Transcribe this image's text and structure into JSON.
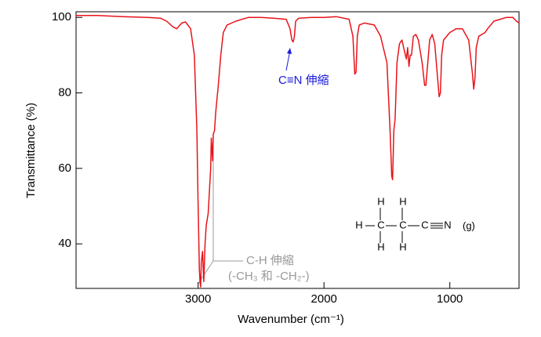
{
  "chart_data": {
    "type": "line",
    "x_label": "Wavenumber (cm⁻¹)",
    "y_label": "Transmittance (%)",
    "xlim": [
      3970,
      450
    ],
    "ylim": [
      28.2,
      101.5
    ],
    "xticks": [
      3000,
      2000,
      1000
    ],
    "yticks": [
      40,
      60,
      80,
      100
    ],
    "x": [
      3970,
      3800,
      3600,
      3400,
      3300,
      3250,
      3200,
      3170,
      3130,
      3100,
      3060,
      3030,
      3010,
      3000,
      2990,
      2985,
      2980,
      2975,
      2965,
      2955,
      2945,
      2935,
      2920,
      2900,
      2895,
      2885,
      2880,
      2870,
      2860,
      2840,
      2820,
      2800,
      2770,
      2700,
      2600,
      2500,
      2400,
      2300,
      2270,
      2255,
      2245,
      2235,
      2225,
      2200,
      2100,
      2000,
      1900,
      1800,
      1770,
      1755,
      1745,
      1735,
      1720,
      1680,
      1600,
      1550,
      1500,
      1475,
      1462,
      1455,
      1445,
      1435,
      1420,
      1400,
      1380,
      1360,
      1345,
      1335,
      1325,
      1315,
      1305,
      1290,
      1270,
      1250,
      1220,
      1200,
      1190,
      1180,
      1160,
      1140,
      1120,
      1100,
      1085,
      1075,
      1065,
      1050,
      1000,
      950,
      900,
      850,
      820,
      810,
      800,
      790,
      770,
      720,
      700,
      650,
      600,
      550,
      500,
      470,
      450
    ],
    "series": [
      {
        "name": "CH3CH2CN (g)",
        "color": "#e8141b",
        "values": [
          100.5,
          100.5,
          100.2,
          100,
          99.8,
          99,
          97.5,
          97,
          98.5,
          98.8,
          97,
          90,
          70,
          50,
          33,
          30,
          28.6,
          35,
          38,
          30,
          40,
          45,
          48,
          60,
          68,
          62,
          69,
          70,
          75,
          82,
          90,
          96,
          98,
          99,
          100,
          100,
          99.8,
          99.5,
          97,
          94,
          93.5,
          95,
          99,
          99.8,
          100,
          100,
          100.2,
          99.5,
          95,
          85,
          85.5,
          95,
          98,
          98.5,
          98,
          95,
          88,
          70,
          58,
          57,
          70,
          73,
          88,
          93,
          94,
          91,
          89,
          92,
          87,
          90,
          90,
          95,
          95.5,
          94,
          88,
          82,
          82,
          86,
          94,
          95.5,
          93,
          85,
          79,
          80,
          90,
          94,
          96,
          97,
          97,
          94,
          85,
          81,
          84,
          92,
          95,
          96,
          97,
          99,
          99.5,
          100,
          100,
          99,
          98.5
        ]
      }
    ],
    "annotations": [
      "C≡N 伸縮",
      "C-H 伸縮",
      "(-CH₃ 和 -CH₂-)"
    ],
    "molecule": [
      "H",
      "H",
      "H",
      "C",
      "C",
      "C",
      "N",
      "(g)",
      "H",
      "H"
    ]
  }
}
